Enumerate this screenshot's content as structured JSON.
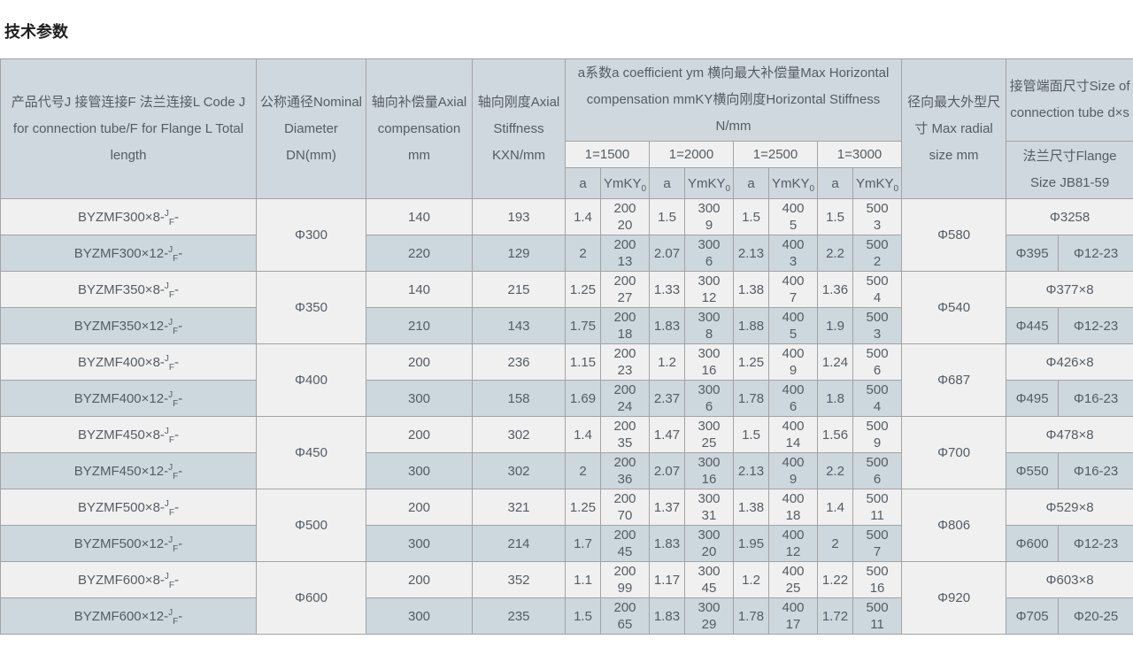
{
  "title": "技术参数",
  "colors": {
    "header_bg": "#cfd8de",
    "row_light_bg": "#f0f0f0",
    "row_blue_bg": "#ccd7de",
    "border": "#a3a3a3",
    "text": "#555c63"
  },
  "table": {
    "headers": {
      "product": "产品代号J 接管连接F 法兰连接L Code J for connection tube/F for Flange L Total length",
      "dn": "公称通径Nominal Diameter DN(mm)",
      "axial_comp": "轴向补偿量Axial compensation mm",
      "axial_stiff": "轴向刚度Axial Stiffness KXN/mm",
      "coeff_group": "a系数a coefficient ym 横向最大补偿量Max Horizontal compensation mmKY横向刚度Horizontal Stiffness N/mm",
      "radial": "径向最大外型尺寸 Max radial size mm",
      "tube": "接管端面尺寸Size of connection tube d×s",
      "flange": "法兰尺寸Flange Size JB81-59"
    },
    "spans": [
      "1=1500",
      "1=2000",
      "1=2500",
      "1=3000"
    ],
    "sub_a_label": "a",
    "sub_ym_label": "YmKY",
    "sub_ym_subscript": "0",
    "code_sup": "J",
    "code_sub": "F",
    "code_tail": "-",
    "groups": [
      {
        "dn": "Φ300",
        "radial": "Φ580",
        "tube": "Φ3258",
        "flange": [
          "Φ395",
          "Φ12-23"
        ],
        "rows": [
          {
            "code_base": "BYZMF300×8-",
            "comp": "140",
            "stiff": "193",
            "cells": [
              {
                "a": "1.4",
                "ym": [
                  "200",
                  "20"
                ]
              },
              {
                "a": "1.5",
                "ym": [
                  "300",
                  "9"
                ]
              },
              {
                "a": "1.5",
                "ym": [
                  "400",
                  "5"
                ]
              },
              {
                "a": "1.5",
                "ym": [
                  "500",
                  "3"
                ]
              }
            ]
          },
          {
            "code_base": "BYZMF300×12-",
            "comp": "220",
            "stiff": "129",
            "cells": [
              {
                "a": "2",
                "ym": [
                  "200",
                  "13"
                ]
              },
              {
                "a": "2.07",
                "ym": [
                  "300",
                  "6"
                ]
              },
              {
                "a": "2.13",
                "ym": [
                  "400",
                  "3"
                ]
              },
              {
                "a": "2.2",
                "ym": [
                  "500",
                  "2"
                ]
              }
            ]
          }
        ]
      },
      {
        "dn": "Φ350",
        "radial": "Φ540",
        "tube": "Φ377×8",
        "flange": [
          "Φ445",
          "Φ12-23"
        ],
        "rows": [
          {
            "code_base": "BYZMF350×8-",
            "comp": "140",
            "stiff": "215",
            "cells": [
              {
                "a": "1.25",
                "ym": [
                  "200",
                  "27"
                ]
              },
              {
                "a": "1.33",
                "ym": [
                  "300",
                  "12"
                ]
              },
              {
                "a": "1.38",
                "ym": [
                  "400",
                  "7"
                ]
              },
              {
                "a": "1.36",
                "ym": [
                  "500",
                  "4"
                ]
              }
            ]
          },
          {
            "code_base": "BYZMF350×12-",
            "comp": "210",
            "stiff": "143",
            "cells": [
              {
                "a": "1.75",
                "ym": [
                  "200",
                  "18"
                ]
              },
              {
                "a": "1.83",
                "ym": [
                  "300",
                  "8"
                ]
              },
              {
                "a": "1.88",
                "ym": [
                  "400",
                  "5"
                ]
              },
              {
                "a": "1.9",
                "ym": [
                  "500",
                  "3"
                ]
              }
            ]
          }
        ]
      },
      {
        "dn": "Φ400",
        "radial": "Φ687",
        "tube": "Φ426×8",
        "flange": [
          "Φ495",
          "Φ16-23"
        ],
        "rows": [
          {
            "code_base": "BYZMF400×8-",
            "comp": "200",
            "stiff": "236",
            "cells": [
              {
                "a": "1.15",
                "ym": [
                  "200",
                  "23"
                ]
              },
              {
                "a": "1.2",
                "ym": [
                  "300",
                  "16"
                ]
              },
              {
                "a": "1.25",
                "ym": [
                  "400",
                  "9"
                ]
              },
              {
                "a": "1.24",
                "ym": [
                  "500",
                  "6"
                ]
              }
            ]
          },
          {
            "code_base": "BYZMF400×12-",
            "comp": "300",
            "stiff": "158",
            "cells": [
              {
                "a": "1.69",
                "ym": [
                  "200",
                  "24"
                ]
              },
              {
                "a": "2.37",
                "ym": [
                  "300",
                  "6"
                ]
              },
              {
                "a": "1.78",
                "ym": [
                  "400",
                  "6"
                ]
              },
              {
                "a": "1.8",
                "ym": [
                  "500",
                  "4"
                ]
              }
            ]
          }
        ]
      },
      {
        "dn": "Φ450",
        "radial": "Φ700",
        "tube": "Φ478×8",
        "flange": [
          "Φ550",
          "Φ16-23"
        ],
        "rows": [
          {
            "code_base": "BYZMF450×8-",
            "comp": "200",
            "stiff": "302",
            "cells": [
              {
                "a": "1.4",
                "ym": [
                  "200",
                  "35"
                ]
              },
              {
                "a": "1.47",
                "ym": [
                  "300",
                  "25"
                ]
              },
              {
                "a": "1.5",
                "ym": [
                  "400",
                  "14"
                ]
              },
              {
                "a": "1.56",
                "ym": [
                  "500",
                  "9"
                ]
              }
            ]
          },
          {
            "code_base": "BYZMF450×12-",
            "comp": "300",
            "stiff": "302",
            "cells": [
              {
                "a": "2",
                "ym": [
                  "200",
                  "36"
                ]
              },
              {
                "a": "2.07",
                "ym": [
                  "300",
                  "16"
                ]
              },
              {
                "a": "2.13",
                "ym": [
                  "400",
                  "9"
                ]
              },
              {
                "a": "2.2",
                "ym": [
                  "500",
                  "6"
                ]
              }
            ]
          }
        ]
      },
      {
        "dn": "Φ500",
        "radial": "Φ806",
        "tube": "Φ529×8",
        "flange": [
          "Φ600",
          "Φ12-23"
        ],
        "rows": [
          {
            "code_base": "BYZMF500×8-",
            "comp": "200",
            "stiff": "321",
            "cells": [
              {
                "a": "1.25",
                "ym": [
                  "200",
                  "70"
                ]
              },
              {
                "a": "1.37",
                "ym": [
                  "300",
                  "31"
                ]
              },
              {
                "a": "1.38",
                "ym": [
                  "400",
                  "18"
                ]
              },
              {
                "a": "1.4",
                "ym": [
                  "500",
                  "11"
                ]
              }
            ]
          },
          {
            "code_base": "BYZMF500×12-",
            "comp": "300",
            "stiff": "214",
            "cells": [
              {
                "a": "1.7",
                "ym": [
                  "200",
                  "45"
                ]
              },
              {
                "a": "1.83",
                "ym": [
                  "300",
                  "20"
                ]
              },
              {
                "a": "1.95",
                "ym": [
                  "400",
                  "12"
                ]
              },
              {
                "a": "2",
                "ym": [
                  "500",
                  "7"
                ]
              }
            ]
          }
        ]
      },
      {
        "dn": "Φ600",
        "radial": "Φ920",
        "tube": "Φ603×8",
        "flange": [
          "Φ705",
          "Φ20-25"
        ],
        "rows": [
          {
            "code_base": "BYZMF600×8-",
            "comp": "200",
            "stiff": "352",
            "cells": [
              {
                "a": "1.1",
                "ym": [
                  "200",
                  "99"
                ]
              },
              {
                "a": "1.17",
                "ym": [
                  "300",
                  "45"
                ]
              },
              {
                "a": "1.2",
                "ym": [
                  "400",
                  "25"
                ]
              },
              {
                "a": "1.22",
                "ym": [
                  "500",
                  "16"
                ]
              }
            ]
          },
          {
            "code_base": "BYZMF600×12-",
            "comp": "300",
            "stiff": "235",
            "cells": [
              {
                "a": "1.5",
                "ym": [
                  "200",
                  "65"
                ]
              },
              {
                "a": "1.83",
                "ym": [
                  "300",
                  "29"
                ]
              },
              {
                "a": "1.78",
                "ym": [
                  "400",
                  "17"
                ]
              },
              {
                "a": "1.72",
                "ym": [
                  "500",
                  "11"
                ]
              }
            ]
          }
        ]
      }
    ]
  }
}
